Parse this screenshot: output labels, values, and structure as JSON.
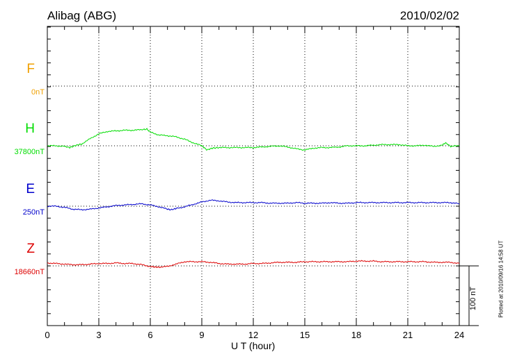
{
  "header": {
    "station": "Alibag (ABG)",
    "date": "2010/02/02"
  },
  "footer_note": "Plotted at 2010/09/16 14:58 UT",
  "scale_bar_label": "100 nT",
  "colors": {
    "F": "#f0a000",
    "H": "#00dd00",
    "E": "#0000cc",
    "Z": "#dd0000",
    "axis": "#000000"
  },
  "chart_data": {
    "type": "line",
    "xlabel": "U T (hour)",
    "xlim": [
      0,
      24
    ],
    "xticks": [
      0,
      3,
      6,
      9,
      12,
      15,
      18,
      21,
      24
    ],
    "y_unit": "nT",
    "scale_bar_nT": 100,
    "series": [
      {
        "name": "F",
        "baseline_label": "0nT",
        "baseline": 0,
        "x": [],
        "y": []
      },
      {
        "name": "H",
        "baseline_label": "37800nT",
        "baseline": 37800,
        "x": [
          0,
          0.5,
          1,
          1.3,
          1.7,
          2,
          2.5,
          3,
          3.5,
          4,
          4.5,
          5,
          5.5,
          5.8,
          6,
          6.5,
          7,
          7.5,
          8,
          8.5,
          9,
          9.3,
          9.6,
          10,
          10.5,
          11,
          11.5,
          12,
          12.5,
          13,
          13.5,
          14,
          14.5,
          15,
          15.5,
          16,
          16.5,
          17,
          17.5,
          18,
          18.5,
          19,
          19.5,
          20,
          20.5,
          21,
          21.5,
          22,
          22.5,
          23,
          23.2,
          23.5,
          24
        ],
        "y": [
          37800,
          37800,
          37799,
          37797,
          37801,
          37803,
          37812,
          37820,
          37824,
          37825,
          37826,
          37826,
          37827,
          37828,
          37823,
          37818,
          37817,
          37815,
          37811,
          37805,
          37800,
          37793,
          37796,
          37797,
          37797,
          37797,
          37797,
          37797,
          37798,
          37799,
          37800,
          37798,
          37795,
          37793,
          37796,
          37797,
          37797,
          37798,
          37800,
          37800,
          37800,
          37801,
          37802,
          37802,
          37802,
          37800,
          37800,
          37801,
          37799,
          37801,
          37805,
          37799,
          37800
        ]
      },
      {
        "name": "E",
        "baseline_label": "250nT",
        "baseline": 250,
        "x": [
          0,
          0.5,
          1,
          1.5,
          2,
          2.5,
          3,
          3.5,
          4,
          4.5,
          5,
          5.5,
          6,
          6.5,
          7,
          7.2,
          7.5,
          8,
          8.5,
          9,
          9.5,
          10,
          10.5,
          11,
          11.5,
          12,
          12.5,
          13,
          13.5,
          14,
          14.5,
          15,
          15.5,
          16,
          16.5,
          17,
          17.5,
          18,
          18.5,
          19,
          19.5,
          20,
          20.5,
          21,
          21.5,
          22,
          22.5,
          23,
          23.5,
          24
        ],
        "y": [
          250,
          250,
          248,
          245,
          244,
          245,
          247,
          249,
          251,
          252,
          253,
          254,
          252,
          249,
          245,
          244,
          246,
          249,
          253,
          257,
          260,
          259,
          257,
          256,
          256,
          256,
          256,
          255,
          255,
          255,
          256,
          255,
          255,
          255,
          256,
          255,
          255,
          256,
          256,
          256,
          256,
          256,
          256,
          256,
          256,
          256,
          256,
          256,
          256,
          254
        ]
      },
      {
        "name": "Z",
        "baseline_label": "18660nT",
        "baseline": 18660,
        "x": [
          0,
          0.5,
          1,
          1.5,
          2,
          2.5,
          3,
          3.5,
          4,
          4.5,
          5,
          5.5,
          6,
          6.3,
          6.5,
          7,
          7.5,
          8,
          8.5,
          9,
          9.5,
          10,
          10.5,
          11,
          11.5,
          12,
          12.5,
          13,
          13.5,
          14,
          14.5,
          15,
          15.5,
          16,
          16.5,
          17,
          17.5,
          18,
          18.5,
          19,
          19.5,
          20,
          20.5,
          21,
          21.5,
          22,
          22.5,
          23,
          23.5,
          24
        ],
        "y": [
          18665,
          18664,
          18663,
          18662,
          18662,
          18663,
          18664,
          18664,
          18665,
          18664,
          18664,
          18662,
          18659,
          18658,
          18658,
          18659,
          18663,
          18667,
          18667,
          18667,
          18666,
          18664,
          18663,
          18663,
          18663,
          18664,
          18664,
          18665,
          18666,
          18666,
          18666,
          18667,
          18667,
          18667,
          18667,
          18667,
          18667,
          18668,
          18668,
          18668,
          18667,
          18667,
          18667,
          18667,
          18667,
          18667,
          18666,
          18666,
          18666,
          18664
        ]
      }
    ]
  }
}
